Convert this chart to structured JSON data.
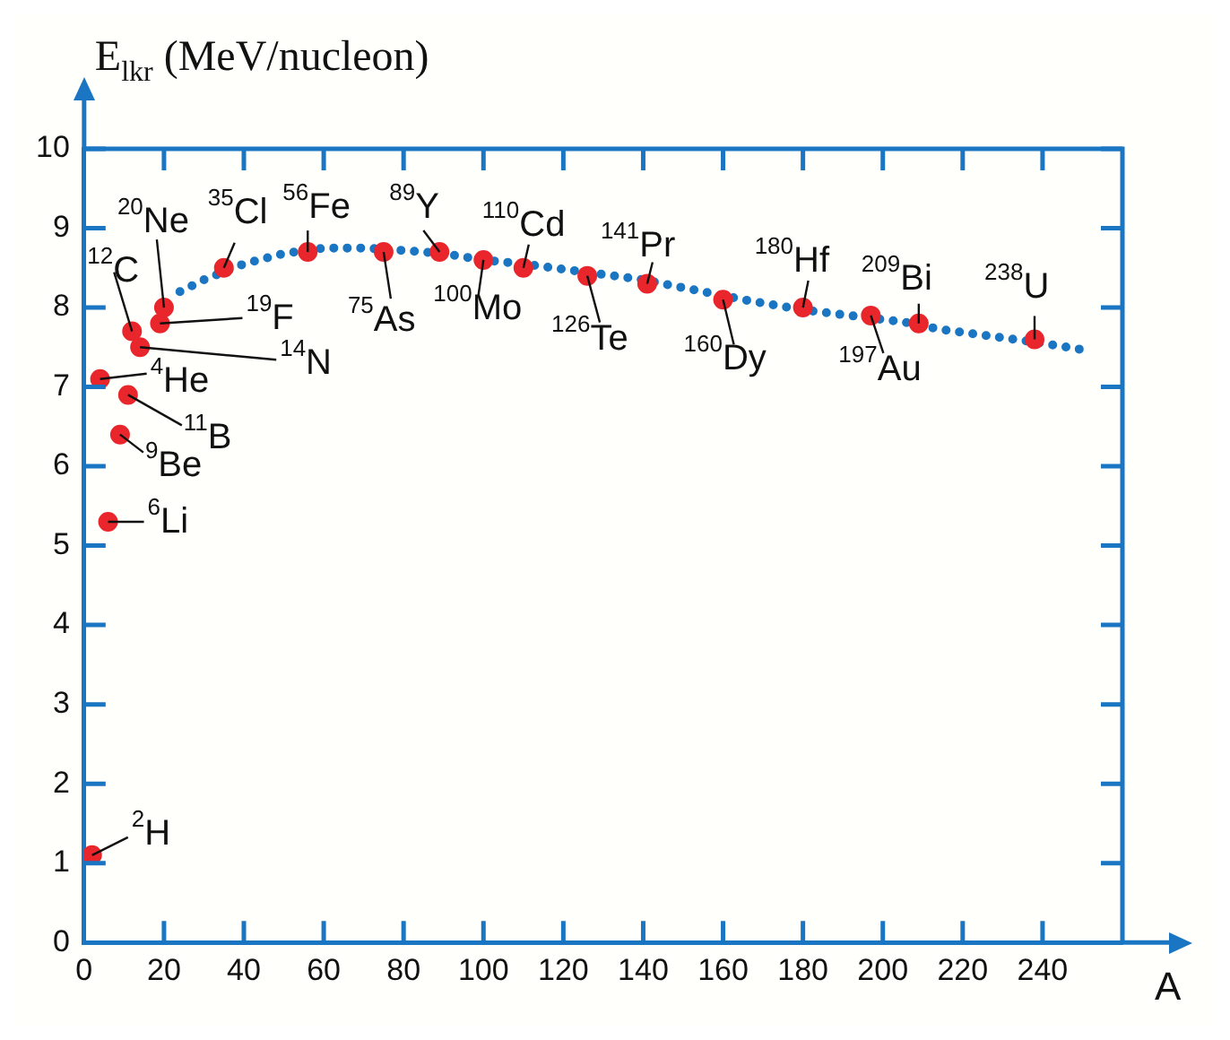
{
  "chart_data": {
    "type": "scatter",
    "ylabel": "E$_{lkr}$ (MeV/nucleon)",
    "xlabel": "A",
    "xlim": [
      0,
      260
    ],
    "ylim": [
      0,
      10
    ],
    "xticks": [
      0,
      20,
      40,
      60,
      80,
      100,
      120,
      140,
      160,
      180,
      200,
      220,
      240
    ],
    "yticks": [
      0,
      1,
      2,
      3,
      4,
      5,
      6,
      7,
      8,
      9,
      10
    ],
    "grid": false,
    "legend": false,
    "series": [
      {
        "type": "line",
        "color": "#1a75c2",
        "line_style": "dotted",
        "marker": "none",
        "x": [
          24,
          30,
          40,
          50,
          60,
          70,
          80,
          90,
          100,
          110,
          125,
          140,
          150,
          165,
          180,
          195,
          205,
          215,
          230,
          240,
          250
        ],
        "values": [
          8.2,
          8.35,
          8.55,
          8.68,
          8.75,
          8.75,
          8.72,
          8.68,
          8.6,
          8.55,
          8.45,
          8.35,
          8.25,
          8.1,
          7.97,
          7.88,
          7.82,
          7.72,
          7.62,
          7.55,
          7.47
        ]
      },
      {
        "type": "scatter",
        "color": "#e8262b",
        "marker": "circle",
        "x": [
          2,
          4,
          6,
          9,
          11,
          12,
          14,
          19,
          20,
          35,
          56,
          75,
          89,
          100,
          110,
          126,
          141,
          160,
          180,
          197,
          209,
          238
        ],
        "values": [
          1.1,
          7.1,
          5.3,
          6.4,
          6.9,
          7.7,
          7.5,
          7.8,
          8.0,
          8.5,
          8.7,
          8.7,
          8.7,
          8.6,
          8.5,
          8.4,
          8.3,
          8.1,
          8.0,
          7.9,
          7.8,
          7.6
        ]
      }
    ],
    "annotations": [
      {
        "text": "$^{2}$H",
        "x": 2,
        "y": 1.1
      },
      {
        "text": "$^{4}$He",
        "x": 4,
        "y": 7.1
      },
      {
        "text": "$^{6}$Li",
        "x": 6,
        "y": 5.3
      },
      {
        "text": "$^{9}$Be",
        "x": 9,
        "y": 6.4
      },
      {
        "text": "$^{11}$B",
        "x": 11,
        "y": 6.9
      },
      {
        "text": "$^{12}$C",
        "x": 12,
        "y": 7.7
      },
      {
        "text": "$^{14}$N",
        "x": 14,
        "y": 7.5
      },
      {
        "text": "$^{19}$F",
        "x": 19,
        "y": 7.8
      },
      {
        "text": "$^{20}$Ne",
        "x": 20,
        "y": 8.0
      },
      {
        "text": "$^{35}$Cl",
        "x": 35,
        "y": 8.5
      },
      {
        "text": "$^{56}$Fe",
        "x": 56,
        "y": 8.7
      },
      {
        "text": "$^{75}$As",
        "x": 75,
        "y": 8.7
      },
      {
        "text": "$^{89}$Y",
        "x": 89,
        "y": 8.7
      },
      {
        "text": "$^{100}$Mo",
        "x": 100,
        "y": 8.6
      },
      {
        "text": "$^{110}$Cd",
        "x": 110,
        "y": 8.5
      },
      {
        "text": "$^{126}$Te",
        "x": 126,
        "y": 8.4
      },
      {
        "text": "$^{141}$Pr",
        "x": 141,
        "y": 8.3
      },
      {
        "text": "$^{160}$Dy",
        "x": 160,
        "y": 8.1
      },
      {
        "text": "$^{180}$Hf",
        "x": 180,
        "y": 8.0
      },
      {
        "text": "$^{197}$Au",
        "x": 197,
        "y": 7.9
      },
      {
        "text": "$^{209}$Bi",
        "x": 209,
        "y": 7.8
      },
      {
        "text": "$^{238}$U",
        "x": 238,
        "y": 7.6
      }
    ]
  }
}
